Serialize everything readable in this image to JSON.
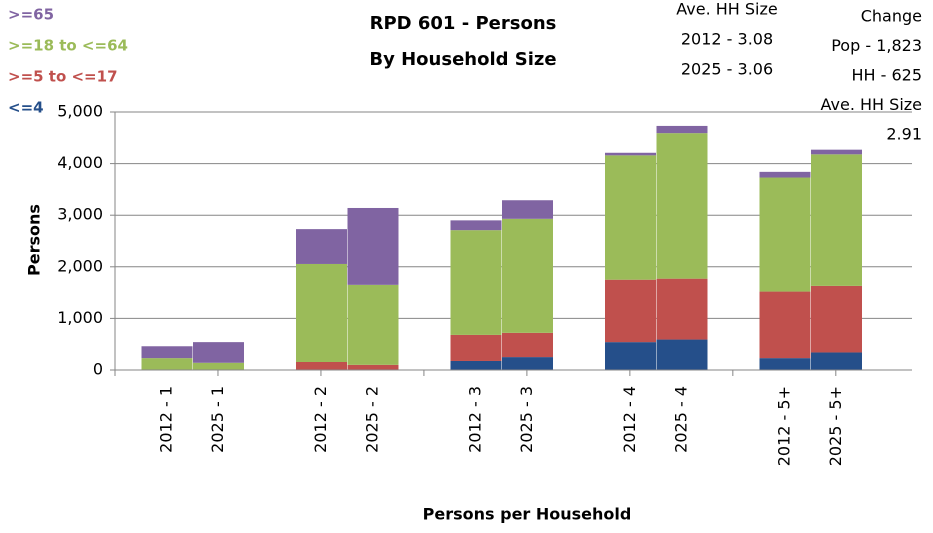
{
  "chart_data": {
    "type": "stacked_bar",
    "title": "RPD 601 - Persons",
    "subtitle": "By Household Size",
    "annotations_left": [
      "Ave. HH Size",
      "2012 - 3.08",
      "2025 - 3.06"
    ],
    "annotations_right": [
      "Change",
      "Pop -  1,823",
      "HH - 625",
      "Ave. HH Size",
      "2.91"
    ],
    "x_label": "Persons per Household",
    "y_label": "Persons",
    "categories": [
      "2012 - 1",
      "2025 - 1",
      null,
      "2012 - 2",
      "2025 - 2",
      null,
      "2012 - 3",
      "2025 - 3",
      null,
      "2012 - 4",
      "2025 - 4",
      null,
      "2012 - 5+",
      "2025 - 5+"
    ],
    "series": [
      {
        "name": "<=4",
        "color": "#254f8a",
        "values": [
          0,
          0,
          null,
          10,
          10,
          null,
          175,
          250,
          null,
          540,
          590,
          null,
          230,
          340
        ]
      },
      {
        "name": ">=5 to <=17",
        "color": "#c0504d",
        "values": [
          10,
          10,
          null,
          145,
          90,
          null,
          505,
          470,
          null,
          1210,
          1180,
          null,
          1290,
          1290
        ]
      },
      {
        "name": ">=18 to <=64",
        "color": "#9bbb59",
        "values": [
          220,
          130,
          null,
          1900,
          1550,
          null,
          2030,
          2210,
          null,
          2410,
          2820,
          null,
          2210,
          2550
        ]
      },
      {
        "name": ">=65",
        "color": "#8064a2",
        "values": [
          230,
          400,
          null,
          675,
          1490,
          null,
          190,
          360,
          null,
          50,
          140,
          null,
          110,
          90
        ]
      }
    ],
    "ylim": [
      0,
      5000
    ],
    "yticks": [
      0,
      {
        "value": 1000,
        "label": "1,000"
      },
      {
        "value": 2000,
        "label": "2,000"
      },
      {
        "value": 3000,
        "label": "3,000"
      },
      {
        "value": 4000,
        "label": "4,000"
      },
      {
        "value": 5000,
        "label": "5,000"
      }
    ],
    "grid": true
  }
}
